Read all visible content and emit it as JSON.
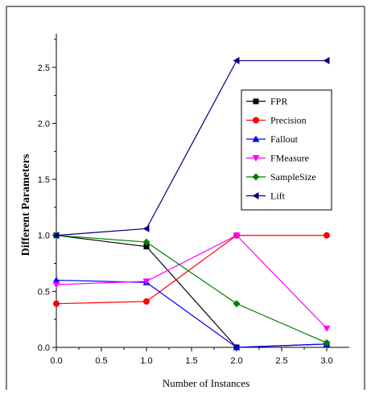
{
  "chart_data": {
    "type": "line",
    "title": "",
    "xlabel": "Number of Instances",
    "ylabel": "Different Parameters",
    "xlim": [
      0.0,
      3.25
    ],
    "ylim": [
      0.0,
      2.8
    ],
    "x_ticks": [
      "0.0",
      "0.5",
      "1.0",
      "1.5",
      "2.0",
      "2.5",
      "3.0"
    ],
    "y_ticks": [
      "0.0",
      "0.5",
      "1.0",
      "1.5",
      "2.0",
      "2.5"
    ],
    "x": [
      0,
      1,
      2,
      3
    ],
    "legend_position": "top-right",
    "grid": false,
    "series": [
      {
        "name": "FPR",
        "values": [
          1.0,
          0.9,
          0.0,
          0.03
        ],
        "color": "#000000",
        "marker": "square"
      },
      {
        "name": "Precision",
        "values": [
          0.39,
          0.41,
          1.0,
          1.0
        ],
        "color": "#ff0000",
        "marker": "circle"
      },
      {
        "name": "Fallout",
        "values": [
          0.6,
          0.58,
          0.0,
          0.03
        ],
        "color": "#0000ff",
        "marker": "triangle-up"
      },
      {
        "name": "FMeasure",
        "values": [
          0.56,
          0.59,
          1.0,
          0.17
        ],
        "color": "#ff00ff",
        "marker": "triangle-down"
      },
      {
        "name": "SampleSize",
        "values": [
          1.0,
          0.94,
          0.39,
          0.04
        ],
        "color": "#008000",
        "marker": "diamond"
      },
      {
        "name": "Lift",
        "values": [
          1.0,
          1.06,
          2.56,
          2.56
        ],
        "color": "#000080",
        "marker": "triangle-left"
      }
    ]
  }
}
